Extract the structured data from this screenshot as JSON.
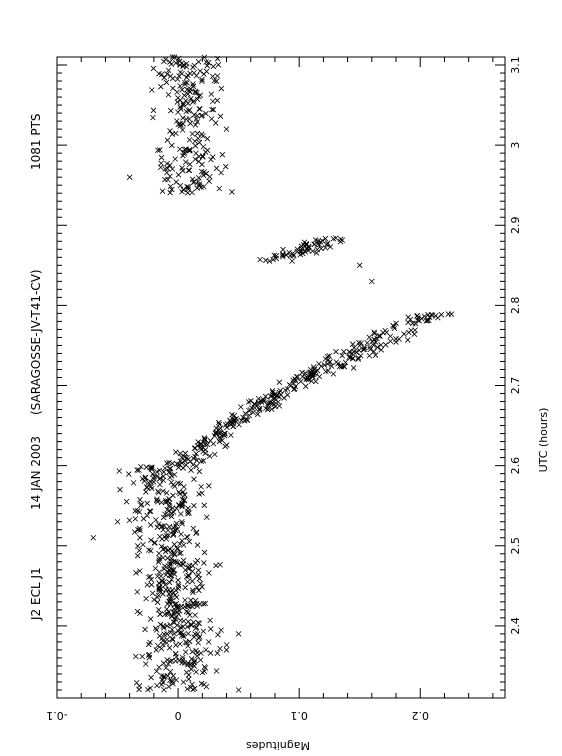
{
  "header": {
    "object": "J2 ECL J1",
    "date": "14 JAN 2003",
    "source": "(SARAGOSSE-JV-T41-CV)",
    "points": "1081 PTS"
  },
  "chart_data": {
    "type": "scatter",
    "orientation": "rotated-90",
    "marker": "x",
    "xlabel": "UTC (hours)",
    "ylabel": "Magnitudes",
    "xlim": [
      2.31,
      3.11
    ],
    "ylim": [
      -0.1,
      0.27
    ],
    "y_inverted": true,
    "x_ticks": [
      2.4,
      2.5,
      2.6,
      2.7,
      2.8,
      2.9,
      3.0,
      3.1
    ],
    "x_tick_labels": [
      "2.4",
      "2.5",
      "2.6",
      "2.7",
      "2.8",
      "2.9",
      "3",
      "3.1"
    ],
    "y_ticks": [
      -0.1,
      0,
      0.1,
      0.2
    ],
    "y_tick_labels": [
      "-0.1",
      "0",
      "0.1",
      "0.2"
    ],
    "grid": false,
    "legend": "none",
    "total_points": 1081,
    "segments": [
      {
        "x_start": 2.32,
        "x_end": 2.48,
        "mag_mean": 0.0,
        "mag_scatter": 0.03,
        "count": 300
      },
      {
        "x_start": 2.48,
        "x_end": 2.6,
        "mag_mean": -0.01,
        "mag_scatter": 0.03,
        "count": 200
      },
      {
        "x_start": 2.6,
        "x_end": 2.66,
        "mag_start": 0.0,
        "mag_end": 0.05,
        "mag_scatter": 0.015,
        "count": 90
      },
      {
        "x_start": 2.66,
        "x_end": 2.72,
        "mag_start": 0.05,
        "mag_end": 0.12,
        "mag_scatter": 0.015,
        "count": 100
      },
      {
        "x_start": 2.72,
        "x_end": 2.79,
        "mag_start": 0.12,
        "mag_end": 0.21,
        "mag_scatter": 0.018,
        "count": 110
      },
      {
        "x_start": 2.855,
        "x_end": 2.885,
        "mag_start": 0.08,
        "mag_end": 0.13,
        "mag_scatter": 0.015,
        "count": 60
      },
      {
        "x_start": 2.94,
        "x_end": 3.11,
        "mag_mean": 0.01,
        "mag_scatter": 0.03,
        "count": 221
      }
    ],
    "outliers": [
      {
        "x": 2.51,
        "y": -0.07
      },
      {
        "x": 2.53,
        "y": -0.05
      },
      {
        "x": 2.32,
        "y": 0.05
      },
      {
        "x": 2.37,
        "y": 0.04
      },
      {
        "x": 2.39,
        "y": 0.05
      },
      {
        "x": 2.83,
        "y": 0.16
      },
      {
        "x": 2.85,
        "y": 0.15
      },
      {
        "x": 2.96,
        "y": -0.04
      },
      {
        "x": 3.02,
        "y": 0.04
      }
    ]
  }
}
